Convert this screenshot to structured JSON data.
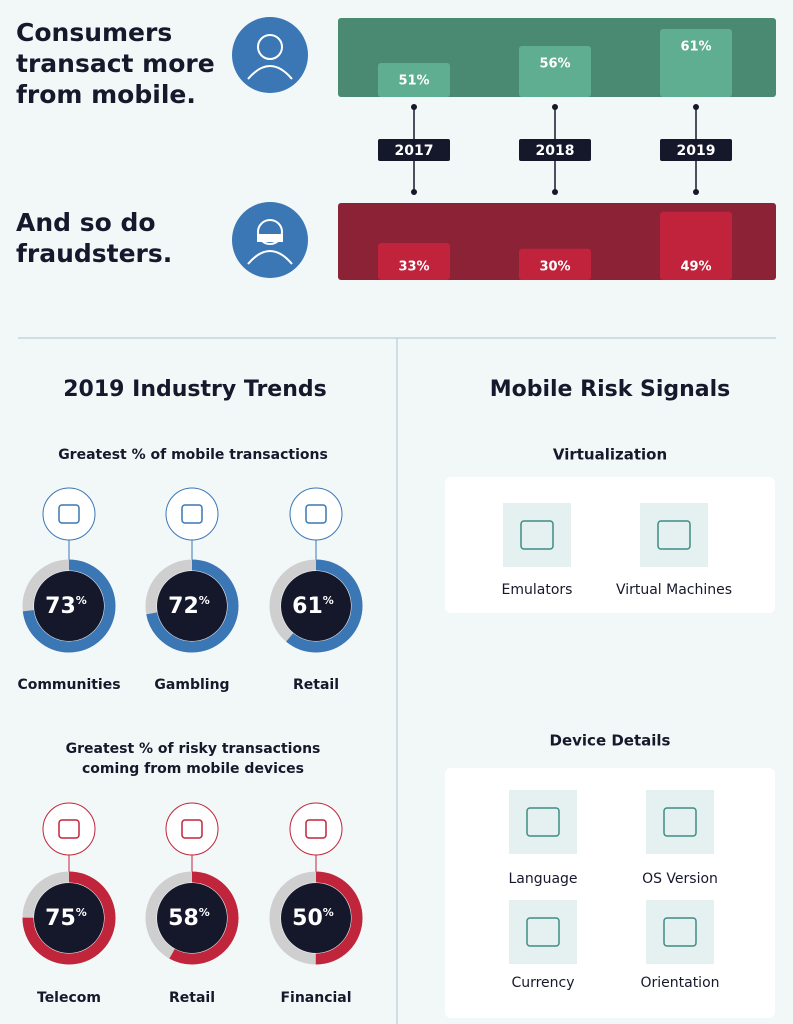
{
  "top": {
    "years": [
      "2017",
      "2018",
      "2019"
    ],
    "consumers": {
      "title_lines": [
        "Consumers",
        "transact more",
        "from mobile."
      ],
      "values": [
        51,
        56,
        61
      ],
      "labels": [
        "51%",
        "56%",
        "61%"
      ]
    },
    "fraudsters": {
      "title_lines": [
        "And so do",
        "fraudsters."
      ],
      "values": [
        33,
        30,
        49
      ],
      "labels": [
        "33%",
        "30%",
        "49%"
      ]
    }
  },
  "industry_trends": {
    "title": "2019 Industry Trends",
    "unit": "%",
    "mobile": {
      "subtitle_lines": [
        "Greatest % of mobile transactions"
      ],
      "items": [
        {
          "name": "Communities",
          "value": 73
        },
        {
          "name": "Gambling",
          "value": 72
        },
        {
          "name": "Retail",
          "value": 61
        }
      ]
    },
    "risky": {
      "subtitle_lines": [
        "Greatest % of risky transactions",
        "coming from mobile devices"
      ],
      "items": [
        {
          "name": "Telecom",
          "value": 75
        },
        {
          "name": "Retail",
          "value": 58
        },
        {
          "name": "Financial",
          "value": 50
        }
      ]
    }
  },
  "risk_signals": {
    "title": "Mobile Risk Signals",
    "groups": [
      {
        "title": "Virtualization",
        "items": [
          "Emulators",
          "Virtual Machines"
        ]
      },
      {
        "title": "Device Details",
        "items": [
          "Language",
          "OS Version",
          "Currency",
          "Orientation"
        ]
      }
    ]
  }
}
